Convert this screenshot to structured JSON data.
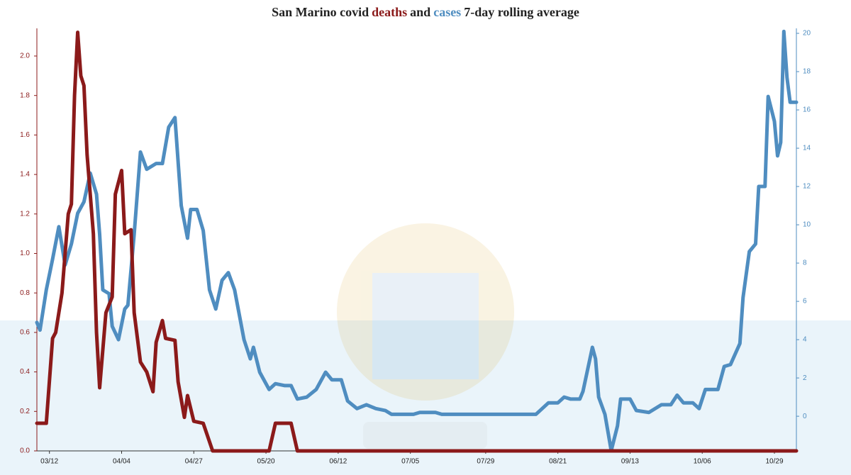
{
  "chart_data": {
    "type": "line",
    "title_parts": [
      "San Marino covid",
      "and",
      "7-day rolling average"
    ],
    "xlim": [
      "03/08",
      "11/05"
    ],
    "xticks": [
      "03/12",
      "04/04",
      "04/27",
      "05/20",
      "06/12",
      "07/05",
      "07/29",
      "08/21",
      "09/13",
      "10/06",
      "10/29"
    ],
    "ylim": [
      0,
      2.14
    ],
    "yticks": [
      {
        "value": 0,
        "label": "0.0"
      },
      0.2,
      0.4,
      0.6,
      0.8,
      {
        "value": 1,
        "label": "1.0"
      },
      1.2,
      1.4,
      1.6,
      1.8,
      {
        "value": 2,
        "label": "2.0"
      }
    ],
    "y2lim": [
      -1.81,
      20.26
    ],
    "y2ticks": [
      0,
      2,
      4,
      6,
      8,
      10,
      12,
      14,
      16,
      18,
      20
    ],
    "left_axis_color": "#8b1a1a",
    "right_axis_color": "#4f8dc0",
    "series": [
      {
        "name": "deaths",
        "color": "#8b1a1a",
        "axis": "y",
        "x": [
          "03/08",
          "03/11",
          "03/13",
          "03/14",
          "03/16",
          "03/18",
          "03/19",
          "03/20",
          "03/21",
          "03/22",
          "03/23",
          "03/24",
          "03/26",
          "03/27",
          "03/28",
          "03/30",
          "04/01",
          "04/02",
          "04/04",
          "04/05",
          "04/07",
          "04/08",
          "04/10",
          "04/12",
          "04/14",
          "04/15",
          "04/17",
          "04/18",
          "04/21",
          "04/22",
          "04/24",
          "04/25",
          "04/27",
          "04/30",
          "05/03",
          "05/21",
          "05/23",
          "05/28",
          "05/30",
          "11/05"
        ],
        "values": [
          0.14,
          0.14,
          0.57,
          0.6,
          0.8,
          1.2,
          1.25,
          1.8,
          2.12,
          1.9,
          1.85,
          1.5,
          1.1,
          0.6,
          0.32,
          0.7,
          0.78,
          1.3,
          1.42,
          1.1,
          1.12,
          0.7,
          0.45,
          0.4,
          0.3,
          0.55,
          0.66,
          0.57,
          0.56,
          0.35,
          0.17,
          0.28,
          0.15,
          0.14,
          0,
          0,
          0.14,
          0.14,
          0,
          0
        ]
      },
      {
        "name": "cases",
        "color": "#4f8dc0",
        "axis": "y2",
        "x": [
          "03/08",
          "03/09",
          "03/11",
          "03/13",
          "03/15",
          "03/17",
          "03/19",
          "03/21",
          "03/23",
          "03/25",
          "03/27",
          "03/28",
          "03/29",
          "03/31",
          "04/01",
          "04/03",
          "04/05",
          "04/06",
          "04/08",
          "04/10",
          "04/12",
          "04/15",
          "04/17",
          "04/19",
          "04/21",
          "04/23",
          "04/25",
          "04/26",
          "04/28",
          "04/30",
          "05/02",
          "05/04",
          "05/06",
          "05/08",
          "05/10",
          "05/13",
          "05/15",
          "05/16",
          "05/18",
          "05/21",
          "05/23",
          "05/26",
          "05/28",
          "05/30",
          "06/02",
          "06/05",
          "06/08",
          "06/10",
          "06/13",
          "06/15",
          "06/18",
          "06/21",
          "06/24",
          "06/27",
          "06/29",
          "07/06",
          "07/08",
          "07/13",
          "07/15",
          "08/14",
          "08/18",
          "08/21",
          "08/23",
          "08/25",
          "08/28",
          "08/29",
          "09/01",
          "09/02",
          "09/03",
          "09/05",
          "09/07",
          "09/09",
          "09/10",
          "09/13",
          "09/15",
          "09/19",
          "09/23",
          "09/26",
          "09/28",
          "09/30",
          "10/03",
          "10/05",
          "10/07",
          "10/11",
          "10/13",
          "10/15",
          "10/18",
          "10/19",
          "10/21",
          "10/23",
          "10/24",
          "10/26",
          "10/27",
          "10/29",
          "10/30",
          "10/31",
          "11/01",
          "11/02",
          "11/03",
          "11/05"
        ],
        "values": [
          4.9,
          4.5,
          6.6,
          8.2,
          9.9,
          7.9,
          9,
          10.6,
          11.2,
          12.7,
          11.6,
          9.5,
          6.6,
          6.4,
          4.7,
          4.0,
          5.6,
          5.8,
          9.5,
          13.8,
          12.9,
          13.2,
          13.2,
          15.1,
          15.6,
          11,
          9.3,
          10.8,
          10.8,
          9.7,
          6.6,
          5.6,
          7.1,
          7.5,
          6.6,
          4.0,
          3.0,
          3.6,
          2.3,
          1.4,
          1.7,
          1.6,
          1.6,
          0.9,
          1.0,
          1.4,
          2.3,
          1.9,
          1.9,
          0.8,
          0.4,
          0.6,
          0.4,
          0.3,
          0.1,
          0.1,
          0.2,
          0.2,
          0.1,
          0.1,
          0.7,
          0.7,
          1.0,
          0.9,
          0.9,
          1.3,
          3.6,
          3.0,
          1.0,
          0.1,
          -1.8,
          -0.5,
          0.9,
          0.9,
          0.3,
          0.2,
          0.6,
          0.6,
          1.1,
          0.7,
          0.7,
          0.4,
          1.4,
          1.4,
          2.6,
          2.7,
          3.8,
          6.2,
          8.6,
          9,
          12,
          12,
          16.7,
          15.4,
          13.6,
          14.3,
          20.1,
          17.7,
          16.4,
          16.4
        ]
      }
    ]
  }
}
